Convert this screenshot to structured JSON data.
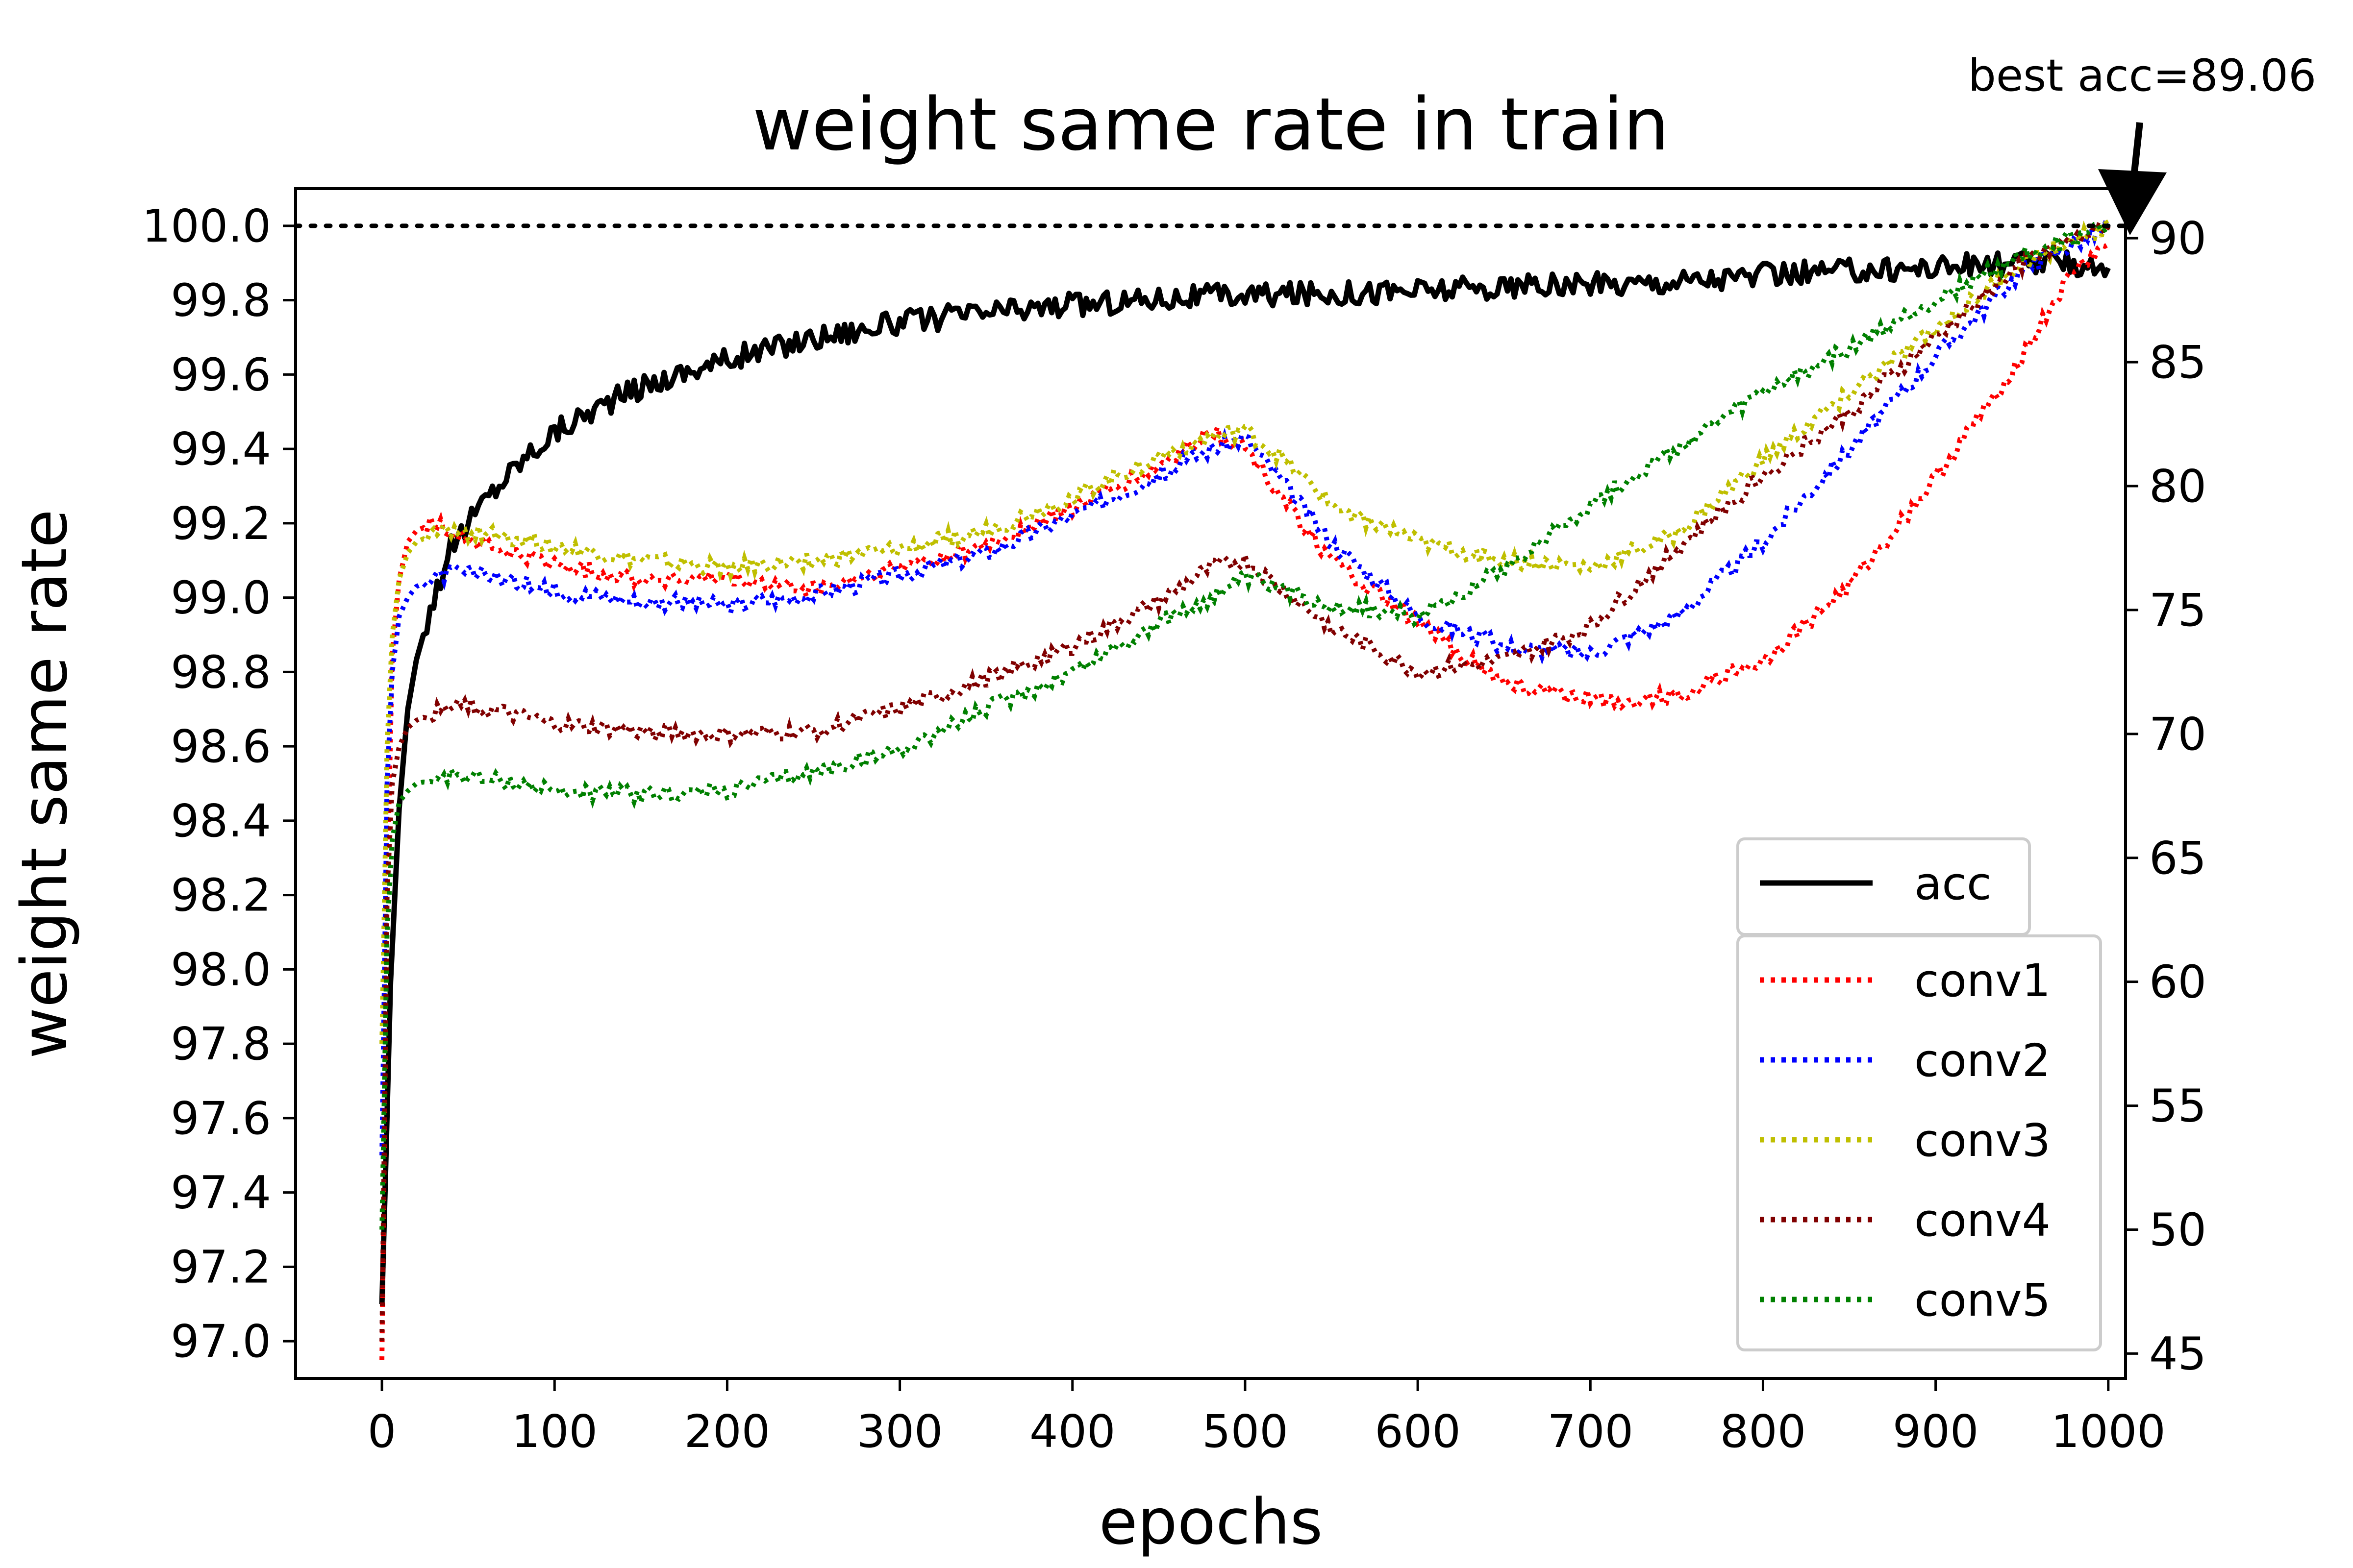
{
  "chart_data": {
    "type": "line",
    "title": "weight same rate in train",
    "xlabel": "epochs",
    "ylabel": "weight same rate",
    "y2label": "",
    "xlim": [
      -50,
      1010
    ],
    "ylim": [
      96.9,
      100.1
    ],
    "y2lim": [
      44,
      92
    ],
    "xticks": [
      "0",
      "100",
      "200",
      "300",
      "400",
      "500",
      "600",
      "700",
      "800",
      "900",
      "1000"
    ],
    "yticks": [
      "97.0",
      "97.2",
      "97.4",
      "97.6",
      "97.8",
      "98.0",
      "98.2",
      "98.4",
      "98.6",
      "98.8",
      "99.0",
      "99.2",
      "99.4",
      "99.6",
      "99.8",
      "100.0"
    ],
    "y2ticks": [
      "45",
      "50",
      "55",
      "60",
      "65",
      "70",
      "75",
      "80",
      "85",
      "90"
    ],
    "reference_line": {
      "y": 100.0,
      "style": "dotted",
      "color": "#000000"
    },
    "annotation": {
      "text": "best acc=89.06",
      "x": 1000,
      "y2": 89.06,
      "style": "arrow"
    },
    "legend": {
      "placement": "lower-right",
      "entries": [
        "acc",
        "conv1",
        "conv2",
        "conv3",
        "conv4",
        "conv5"
      ]
    },
    "grid": false,
    "series": [
      {
        "name": "acc",
        "axis": "right",
        "color": "#000000",
        "style": "solid",
        "x": [
          0,
          2,
          5,
          10,
          15,
          20,
          30,
          40,
          50,
          60,
          80,
          100,
          125,
          150,
          175,
          200,
          250,
          300,
          350,
          400,
          450,
          500,
          550,
          600,
          650,
          700,
          750,
          800,
          850,
          900,
          950,
          1000
        ],
        "y": [
          47,
          52,
          60,
          67,
          71,
          73,
          75.5,
          77.5,
          78.5,
          79.5,
          81,
          82.2,
          83.2,
          84,
          84.6,
          85.1,
          86,
          86.6,
          87,
          87.3,
          87.6,
          87.7,
          87.8,
          87.9,
          88,
          88.1,
          88.3,
          88.5,
          88.7,
          88.85,
          89,
          88.9
        ]
      },
      {
        "name": "conv1",
        "axis": "left",
        "color": "#ff0000",
        "style": "dotted",
        "x": [
          0,
          3,
          6,
          10,
          15,
          20,
          30,
          40,
          60,
          80,
          100,
          150,
          200,
          250,
          300,
          350,
          400,
          450,
          480,
          500,
          520,
          550,
          600,
          650,
          680,
          700,
          720,
          750,
          800,
          850,
          900,
          950,
          980,
          1000
        ],
        "y": [
          96.95,
          98.2,
          98.85,
          99.05,
          99.15,
          99.18,
          99.2,
          99.18,
          99.14,
          99.11,
          99.09,
          99.05,
          99.05,
          99.02,
          99.08,
          99.14,
          99.24,
          99.35,
          99.45,
          99.4,
          99.28,
          99.1,
          98.93,
          98.77,
          98.74,
          98.73,
          98.72,
          98.74,
          98.83,
          99.03,
          99.32,
          99.65,
          99.88,
          99.95
        ]
      },
      {
        "name": "conv2",
        "axis": "left",
        "color": "#0000ff",
        "style": "dotted",
        "x": [
          0,
          3,
          6,
          10,
          15,
          20,
          30,
          40,
          60,
          80,
          100,
          150,
          200,
          250,
          300,
          350,
          400,
          450,
          480,
          500,
          520,
          550,
          600,
          650,
          700,
          750,
          800,
          850,
          900,
          950,
          1000
        ],
        "y": [
          97.5,
          98.5,
          98.8,
          98.95,
          99.0,
          99.03,
          99.05,
          99.07,
          99.06,
          99.04,
          99.02,
          98.99,
          98.98,
          99.01,
          99.06,
          99.12,
          99.22,
          99.33,
          99.4,
          99.43,
          99.32,
          99.15,
          98.95,
          98.87,
          98.85,
          98.95,
          99.15,
          99.4,
          99.65,
          99.88,
          100.0
        ]
      },
      {
        "name": "conv3",
        "axis": "left",
        "color": "#bfbf00",
        "style": "dotted",
        "x": [
          0,
          3,
          6,
          10,
          15,
          20,
          30,
          40,
          60,
          80,
          100,
          150,
          200,
          250,
          300,
          350,
          400,
          450,
          480,
          500,
          520,
          550,
          600,
          650,
          700,
          750,
          800,
          850,
          900,
          950,
          1000
        ],
        "y": [
          97.8,
          98.6,
          98.9,
          99.05,
          99.12,
          99.15,
          99.17,
          99.18,
          99.17,
          99.16,
          99.14,
          99.1,
          99.08,
          99.1,
          99.13,
          99.18,
          99.27,
          99.38,
          99.43,
          99.45,
          99.38,
          99.25,
          99.15,
          99.1,
          99.08,
          99.17,
          99.37,
          99.55,
          99.72,
          99.9,
          100.0
        ]
      },
      {
        "name": "conv4",
        "axis": "left",
        "color": "#800000",
        "style": "dotted",
        "x": [
          0,
          3,
          6,
          10,
          15,
          20,
          30,
          40,
          50,
          60,
          80,
          100,
          150,
          200,
          250,
          300,
          350,
          400,
          450,
          480,
          500,
          550,
          600,
          650,
          700,
          750,
          800,
          850,
          900,
          950,
          1000
        ],
        "y": [
          97.0,
          98.2,
          98.5,
          98.6,
          98.65,
          98.67,
          98.69,
          98.7,
          98.71,
          98.7,
          98.68,
          98.66,
          98.64,
          98.63,
          98.64,
          98.7,
          98.78,
          98.87,
          98.99,
          99.08,
          99.1,
          98.92,
          98.8,
          98.83,
          98.92,
          99.13,
          99.33,
          99.5,
          99.7,
          99.9,
          100.0
        ]
      },
      {
        "name": "conv5",
        "axis": "left",
        "color": "#008000",
        "style": "dotted",
        "x": [
          0,
          3,
          6,
          10,
          15,
          20,
          30,
          40,
          50,
          60,
          80,
          100,
          150,
          200,
          250,
          300,
          350,
          400,
          450,
          480,
          500,
          550,
          600,
          650,
          700,
          750,
          800,
          850,
          900,
          950,
          1000
        ],
        "y": [
          97.3,
          98.1,
          98.35,
          98.45,
          98.48,
          98.5,
          98.51,
          98.52,
          98.52,
          98.51,
          98.5,
          98.48,
          98.47,
          98.48,
          98.53,
          98.59,
          98.7,
          98.8,
          98.93,
          99.0,
          99.05,
          98.98,
          98.95,
          99.08,
          99.25,
          99.4,
          99.55,
          99.67,
          99.8,
          99.92,
          100.0
        ]
      }
    ]
  }
}
